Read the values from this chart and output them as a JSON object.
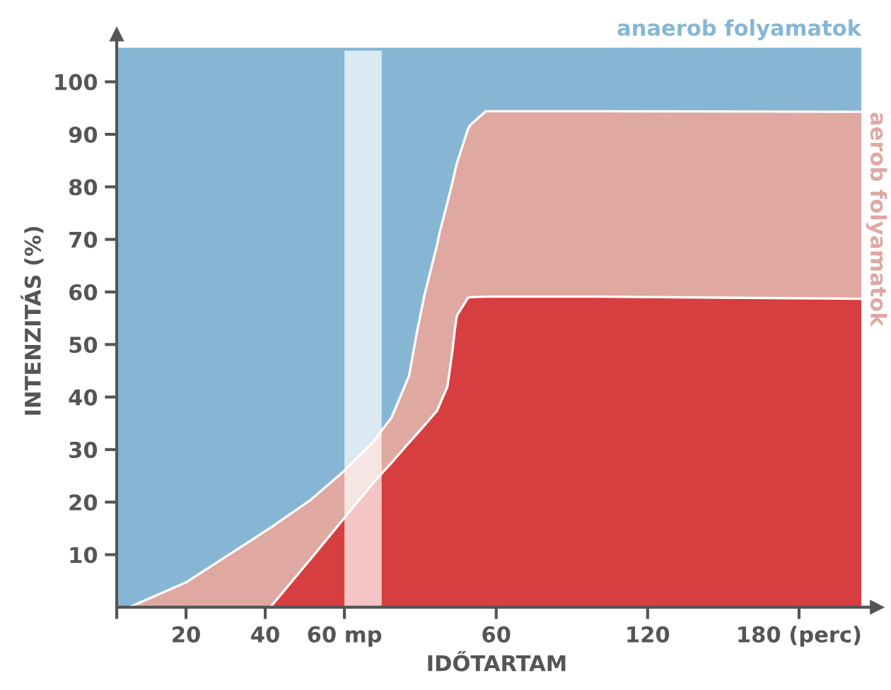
{
  "chart_data": {
    "type": "area",
    "stacked": true,
    "xlabel": "IDŐTARTAM",
    "ylabel": "INTENZITÁS (%)",
    "xlim": [
      2.5,
      194.4
    ],
    "ylim": [
      0,
      109
    ],
    "xticks": [
      {
        "value": 2.5,
        "label": null
      },
      20,
      40,
      {
        "value": 60,
        "label": "60 mp"
      }
    ],
    "x2lim": [
      -90.4,
      210.8
    ],
    "x2ticks": [
      60,
      120,
      {
        "value": 180,
        "label": "180 (perc)"
      }
    ],
    "yticks": [
      10,
      20,
      30,
      40,
      50,
      60,
      70,
      80,
      90,
      100
    ],
    "legend": false,
    "x": [
      2.5,
      5.7,
      20.2,
      41.3,
      51.6,
      60,
      67.1,
      71.9,
      76.3,
      78.2,
      80.2,
      83.4,
      84,
      86,
      87.3,
      87.9,
      88.4,
      91.2,
      91.8,
      95.7,
      124.3,
      190.5
    ],
    "series": [
      {
        "color": "#d73e3f",
        "values": [
          0,
          0,
          0,
          0,
          9.3,
          17,
          23.5,
          27.5,
          31.3,
          32.9,
          34.6,
          37.4,
          38.5,
          42,
          49,
          53,
          55.5,
          58.9,
          59,
          59.1,
          59.1,
          58.7
        ]
      },
      {
        "name": "aerob folyamatok",
        "color": "#dfa8a1",
        "values": [
          0,
          0,
          4.8,
          15.1,
          11.2,
          9,
          7.8,
          8.6,
          12.7,
          19,
          24.8,
          31.6,
          32.7,
          35,
          32,
          30,
          29,
          32.1,
          32.8,
          35.3,
          35.3,
          35.6
        ]
      },
      {
        "name": "anaerob folyamatok",
        "color": "#86b6d4",
        "values": [
          106.7,
          106.7,
          101.9,
          91.6,
          86.2,
          80.7,
          75.4,
          70.6,
          62.7,
          54.8,
          47.3,
          37.7,
          35.5,
          29.7,
          25.7,
          23.7,
          22.2,
          15.7,
          14.9,
          12.3,
          12.3,
          12.4
        ]
      }
    ],
    "bands": [
      {
        "axis": "x",
        "from": 60,
        "to": 69.4,
        "color": "#ffffff"
      }
    ]
  }
}
